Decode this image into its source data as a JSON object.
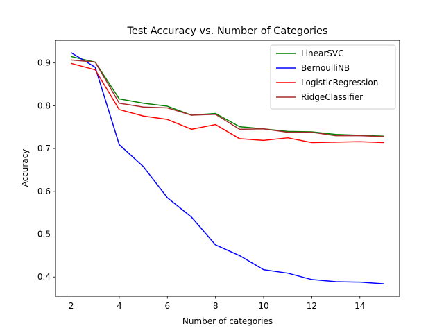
{
  "chart_data": {
    "type": "line",
    "title": "Test Accuracy vs. Number of Categories",
    "xlabel": "Number of categories",
    "ylabel": "Accuracy",
    "xlim": [
      1.35,
      15.65
    ],
    "ylim": [
      0.355,
      0.953
    ],
    "xticks": [
      2,
      4,
      6,
      8,
      10,
      12,
      14
    ],
    "yticks": [
      0.4,
      0.5,
      0.6,
      0.7,
      0.8,
      0.9
    ],
    "legend_position": "top-right",
    "grid": false,
    "x": [
      2,
      3,
      4,
      5,
      6,
      7,
      8,
      9,
      10,
      11,
      12,
      13,
      14,
      15
    ],
    "series": [
      {
        "name": "LinearSVC",
        "color": "#008000",
        "values": [
          0.915,
          0.902,
          0.816,
          0.806,
          0.799,
          0.778,
          0.782,
          0.751,
          0.746,
          0.74,
          0.739,
          0.733,
          0.731,
          0.729
        ]
      },
      {
        "name": "BernoulliNB",
        "color": "#0000ff",
        "values": [
          0.924,
          0.89,
          0.709,
          0.658,
          0.585,
          0.54,
          0.475,
          0.45,
          0.417,
          0.409,
          0.394,
          0.389,
          0.388,
          0.384
        ]
      },
      {
        "name": "LogisticRegression",
        "color": "#ff0000",
        "values": [
          0.899,
          0.884,
          0.791,
          0.776,
          0.768,
          0.745,
          0.756,
          0.723,
          0.719,
          0.725,
          0.714,
          0.715,
          0.716,
          0.714
        ]
      },
      {
        "name": "RidgeClassifier",
        "color": "#a52a2a",
        "values": [
          0.907,
          0.902,
          0.806,
          0.797,
          0.795,
          0.778,
          0.78,
          0.745,
          0.746,
          0.738,
          0.738,
          0.73,
          0.73,
          0.728
        ]
      }
    ]
  }
}
